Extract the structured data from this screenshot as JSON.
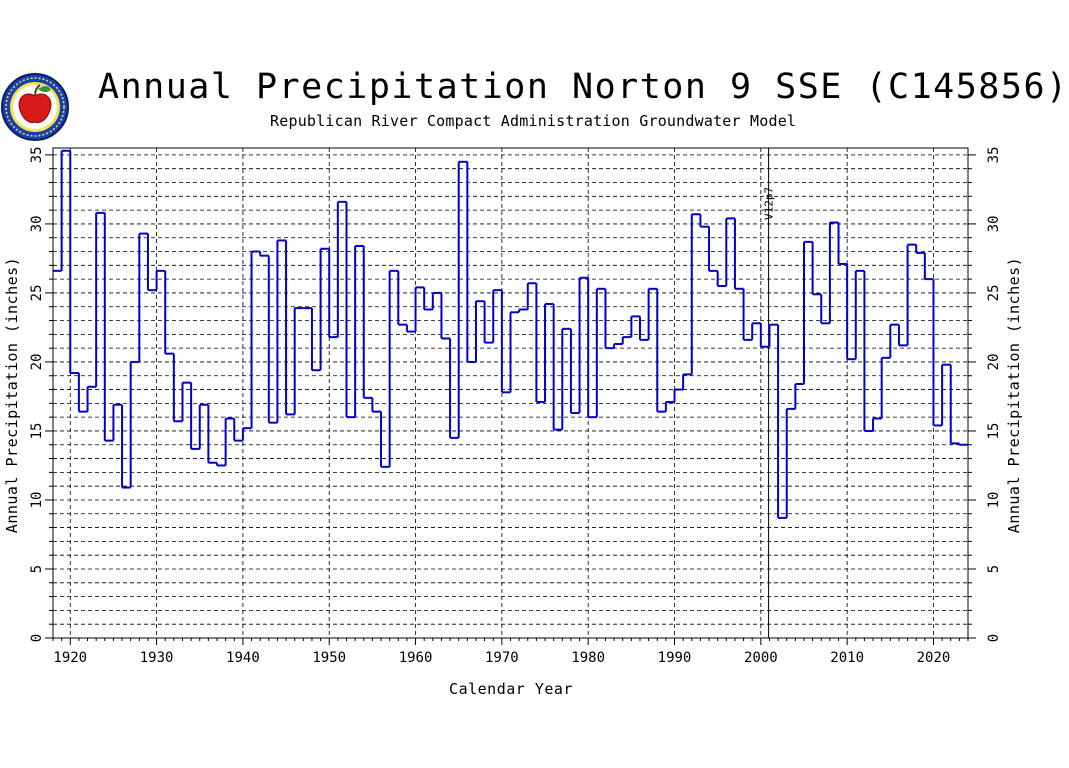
{
  "title": "Annual Precipitation Norton 9 SSE (C145856)",
  "subtitle": "Republican River Compact Administration Groundwater Model",
  "logo_text": "Republican River Compact Administration",
  "colors": {
    "series": "#0000cc",
    "grid": "#000000",
    "marker": "#000000"
  },
  "chart_data": {
    "type": "step",
    "title": "Annual Precipitation Norton 9 SSE (C145856)",
    "subtitle": "Republican River Compact Administration Groundwater Model",
    "xlabel": "Calendar Year",
    "ylabel": "Annual Precipitation (inches)",
    "xlim": [
      1918,
      2024
    ],
    "ylim": [
      0,
      35.5
    ],
    "x_ticks": [
      1920,
      1930,
      1940,
      1950,
      1960,
      1970,
      1980,
      1990,
      2000,
      2010,
      2020
    ],
    "y_ticks": [
      0,
      5,
      10,
      15,
      20,
      25,
      30,
      35
    ],
    "y_minor_step": 1,
    "grid": true,
    "vertical_marker": {
      "x": 2000.9,
      "label": "V12p7"
    },
    "x": [
      1918,
      1919,
      1920,
      1921,
      1922,
      1923,
      1924,
      1925,
      1926,
      1927,
      1928,
      1929,
      1930,
      1931,
      1932,
      1933,
      1934,
      1935,
      1936,
      1937,
      1938,
      1939,
      1940,
      1941,
      1942,
      1943,
      1944,
      1945,
      1946,
      1947,
      1948,
      1949,
      1950,
      1951,
      1952,
      1953,
      1954,
      1955,
      1956,
      1957,
      1958,
      1959,
      1960,
      1961,
      1962,
      1963,
      1964,
      1965,
      1966,
      1967,
      1968,
      1969,
      1970,
      1971,
      1972,
      1973,
      1974,
      1975,
      1976,
      1977,
      1978,
      1979,
      1980,
      1981,
      1982,
      1983,
      1984,
      1985,
      1986,
      1987,
      1988,
      1989,
      1990,
      1991,
      1992,
      1993,
      1994,
      1995,
      1996,
      1997,
      1998,
      1999,
      2000,
      2001,
      2002,
      2003,
      2004,
      2005,
      2006,
      2007,
      2008,
      2009,
      2010,
      2011,
      2012,
      2013,
      2014,
      2015,
      2016,
      2017,
      2018,
      2019,
      2020,
      2021,
      2022,
      2023
    ],
    "values": [
      26.6,
      35.3,
      19.2,
      16.4,
      18.2,
      30.8,
      14.3,
      16.9,
      10.9,
      20.0,
      29.3,
      25.2,
      26.6,
      20.6,
      15.7,
      18.5,
      13.7,
      16.9,
      12.7,
      12.5,
      15.9,
      14.3,
      15.2,
      28.0,
      27.7,
      15.6,
      28.8,
      16.2,
      23.9,
      23.9,
      19.4,
      28.2,
      21.8,
      31.6,
      16.0,
      28.4,
      17.4,
      16.4,
      12.4,
      26.6,
      22.7,
      22.2,
      25.4,
      23.8,
      25.0,
      21.7,
      14.5,
      34.5,
      20.0,
      24.4,
      21.4,
      25.2,
      17.8,
      23.6,
      23.8,
      25.7,
      17.1,
      24.2,
      15.1,
      22.4,
      16.3,
      26.1,
      16.0,
      25.3,
      21.0,
      21.3,
      21.8,
      23.3,
      21.6,
      25.3,
      16.4,
      17.1,
      18.0,
      19.1,
      30.7,
      29.8,
      26.6,
      25.5,
      30.4,
      25.3,
      21.6,
      22.8,
      21.1,
      22.7,
      8.7,
      16.6,
      18.4,
      28.7,
      24.9,
      22.8,
      30.1,
      27.1,
      20.2,
      26.6,
      15.0,
      15.9,
      20.3,
      22.7,
      21.2,
      28.5,
      27.9,
      26.0,
      15.4,
      19.8,
      14.1,
      14.0
    ]
  }
}
